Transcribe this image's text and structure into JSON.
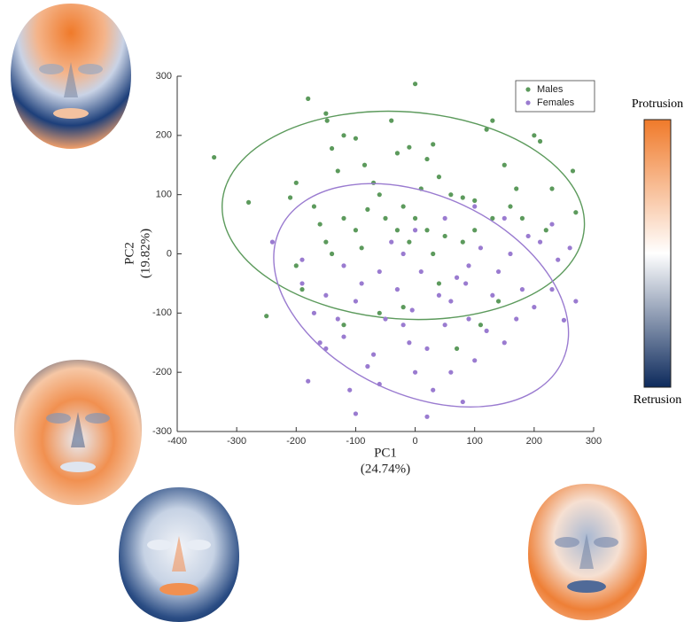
{
  "chart_data": {
    "type": "scatter",
    "xlabel": [
      "PC1",
      "(24.74%)"
    ],
    "ylabel": [
      "PC2",
      "(19.82%)"
    ],
    "xlim": [
      -400,
      300
    ],
    "ylim": [
      -300,
      300
    ],
    "xticks": [
      -400,
      -300,
      -200,
      -100,
      0,
      100,
      200,
      300
    ],
    "yticks": [
      -300,
      -200,
      -100,
      0,
      100,
      200,
      300
    ],
    "legend": "top-right",
    "colorbar": {
      "top": "Protrusion",
      "bottom": "Retrusion",
      "colors": [
        "#f07a2a",
        "#ffffff",
        "#0d2a5c"
      ]
    },
    "series": [
      {
        "name": "Males",
        "color": "#5c9a5c",
        "x": [
          -338,
          -280,
          -250,
          -180,
          -150,
          -148,
          -140,
          -120,
          -130,
          -100,
          -85,
          -70,
          -60,
          -40,
          -30,
          -10,
          0,
          10,
          20,
          30,
          40,
          60,
          80,
          100,
          120,
          130,
          150,
          160,
          180,
          200,
          210,
          230,
          265,
          270,
          -200,
          -210,
          -170,
          -160,
          -150,
          -120,
          -100,
          -80,
          -50,
          -30,
          -20,
          0,
          20,
          50,
          80,
          100,
          130,
          -190,
          -120,
          -60,
          -20,
          40,
          70,
          110,
          140,
          -200,
          -140,
          -90,
          30,
          -10,
          170,
          220
        ],
        "y": [
          163,
          87,
          -105,
          262,
          237,
          225,
          178,
          200,
          140,
          195,
          150,
          120,
          100,
          225,
          170,
          180,
          287,
          110,
          160,
          185,
          130,
          100,
          95,
          90,
          210,
          225,
          150,
          80,
          60,
          200,
          190,
          110,
          140,
          70,
          120,
          95,
          80,
          50,
          20,
          60,
          40,
          75,
          60,
          40,
          80,
          60,
          40,
          30,
          20,
          40,
          60,
          -60,
          -120,
          -100,
          -90,
          -50,
          -160,
          -120,
          -80,
          -20,
          0,
          10,
          0,
          20,
          110,
          40
        ],
        "ellipse": {
          "cx": -20,
          "cy": 65,
          "rx": 305,
          "ry": 175,
          "angle": -4
        }
      },
      {
        "name": "Females",
        "color": "#9a7bd0",
        "x": [
          -180,
          -150,
          -120,
          -100,
          -80,
          -50,
          -30,
          -10,
          0,
          20,
          30,
          50,
          60,
          80,
          100,
          120,
          150,
          170,
          200,
          230,
          250,
          270,
          260,
          230,
          190,
          160,
          140,
          110,
          90,
          70,
          40,
          10,
          -20,
          -60,
          -90,
          -120,
          -150,
          -160,
          -190,
          -190,
          -170,
          -130,
          -70,
          -20,
          20,
          60,
          90,
          130,
          180,
          210,
          240,
          -40,
          0,
          50,
          100,
          150,
          -100,
          -5,
          85,
          -240,
          -110,
          -60
        ],
        "y": [
          -215,
          -160,
          -140,
          -270,
          -190,
          -110,
          -60,
          -150,
          -200,
          -275,
          -230,
          -120,
          -80,
          -250,
          -180,
          -130,
          -150,
          -110,
          -90,
          -60,
          -112,
          -80,
          10,
          50,
          30,
          0,
          -30,
          10,
          -20,
          -40,
          -70,
          -30,
          0,
          -30,
          -50,
          -20,
          -70,
          -150,
          -10,
          -50,
          -100,
          -110,
          -170,
          -120,
          -160,
          -200,
          -110,
          -70,
          -60,
          20,
          -10,
          20,
          40,
          60,
          80,
          60,
          -80,
          -95,
          -50,
          20,
          -230,
          -220
        ],
        "ellipse": {
          "cx": 10,
          "cy": -70,
          "rx": 262,
          "ry": 168,
          "angle": -25
        }
      }
    ]
  }
}
